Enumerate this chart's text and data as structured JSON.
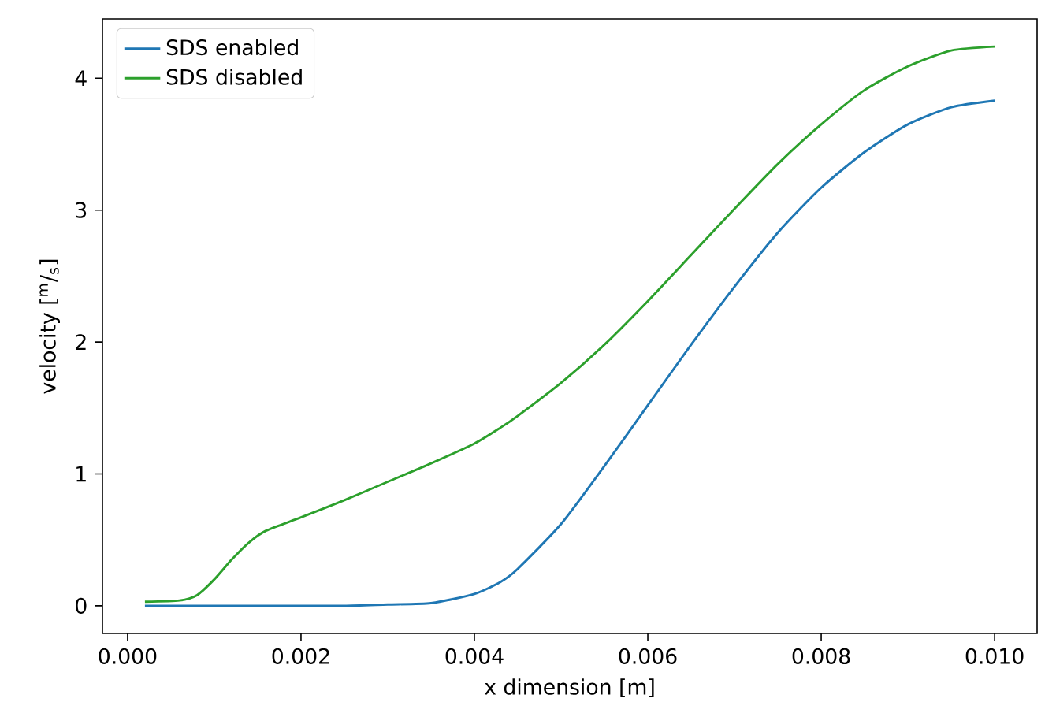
{
  "chart_data": {
    "type": "line",
    "xlabel": "x dimension [m]",
    "ylabel": "velocity [$^{m}$/$_{s}$]",
    "x": [
      0.0002,
      0.0006,
      0.0008,
      0.001,
      0.0012,
      0.0014,
      0.0016,
      0.002,
      0.0025,
      0.003,
      0.0035,
      0.004,
      0.0043,
      0.0045,
      0.005,
      0.0055,
      0.006,
      0.0065,
      0.007,
      0.0075,
      0.008,
      0.0085,
      0.009,
      0.0095,
      0.01
    ],
    "series": [
      {
        "name": "SDS enabled",
        "color": "#1f77b4",
        "values": [
          0.0,
          0.0,
          0.0,
          0.0,
          0.0,
          0.0,
          0.0,
          0.0,
          0.0,
          0.01,
          0.02,
          0.09,
          0.18,
          0.28,
          0.62,
          1.06,
          1.52,
          1.98,
          2.42,
          2.83,
          3.17,
          3.44,
          3.65,
          3.78,
          3.83
        ]
      },
      {
        "name": "SDS disabled",
        "color": "#2ca02c",
        "values": [
          0.03,
          0.04,
          0.08,
          0.2,
          0.35,
          0.48,
          0.57,
          0.67,
          0.8,
          0.94,
          1.08,
          1.23,
          1.35,
          1.44,
          1.69,
          1.98,
          2.31,
          2.66,
          3.01,
          3.35,
          3.65,
          3.91,
          4.09,
          4.21,
          4.24
        ]
      }
    ],
    "xlim": [
      -0.00029,
      0.01049
    ],
    "ylim": [
      -0.21,
      4.45
    ],
    "xticks": [
      {
        "value": 0,
        "label": "0.000"
      },
      {
        "value": 0.002,
        "label": "0.002"
      },
      {
        "value": 0.004,
        "label": "0.004"
      },
      {
        "value": 0.006,
        "label": "0.006"
      },
      {
        "value": 0.008,
        "label": "0.008"
      },
      {
        "value": 0.01,
        "label": "0.010"
      }
    ],
    "yticks": [
      0,
      1,
      2,
      3,
      4
    ],
    "legend": "top left",
    "marker": "none",
    "line_style": "solid"
  }
}
